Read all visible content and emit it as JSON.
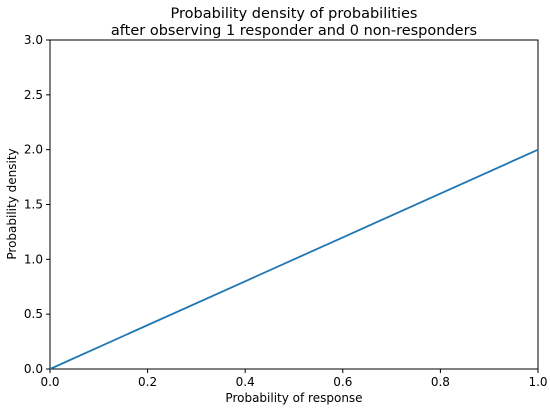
{
  "chart_data": {
    "type": "line",
    "title": "Probability density of probabilities",
    "subtitle": "after observing 1 responder and 0 non-responders",
    "xlabel": "Probability of response",
    "ylabel": "Probability density",
    "xlim": [
      0.0,
      1.0
    ],
    "ylim": [
      0.0,
      3.0
    ],
    "xticks": [
      0.0,
      0.2,
      0.4,
      0.6,
      0.8,
      1.0
    ],
    "xtick_labels": [
      "0.0",
      "0.2",
      "0.4",
      "0.6",
      "0.8",
      "1.0"
    ],
    "yticks": [
      0.0,
      0.5,
      1.0,
      1.5,
      2.0,
      2.5,
      3.0
    ],
    "ytick_labels": [
      "0.0",
      "0.5",
      "1.0",
      "1.5",
      "2.0",
      "2.5",
      "3.0"
    ],
    "grid": false,
    "legend": "none",
    "series": [
      {
        "color": "#1f77b4",
        "x": [
          0.0,
          0.2,
          0.4,
          0.6,
          0.8,
          1.0
        ],
        "y": [
          0.0,
          0.4,
          0.8,
          1.2,
          1.6,
          2.0
        ]
      }
    ]
  }
}
